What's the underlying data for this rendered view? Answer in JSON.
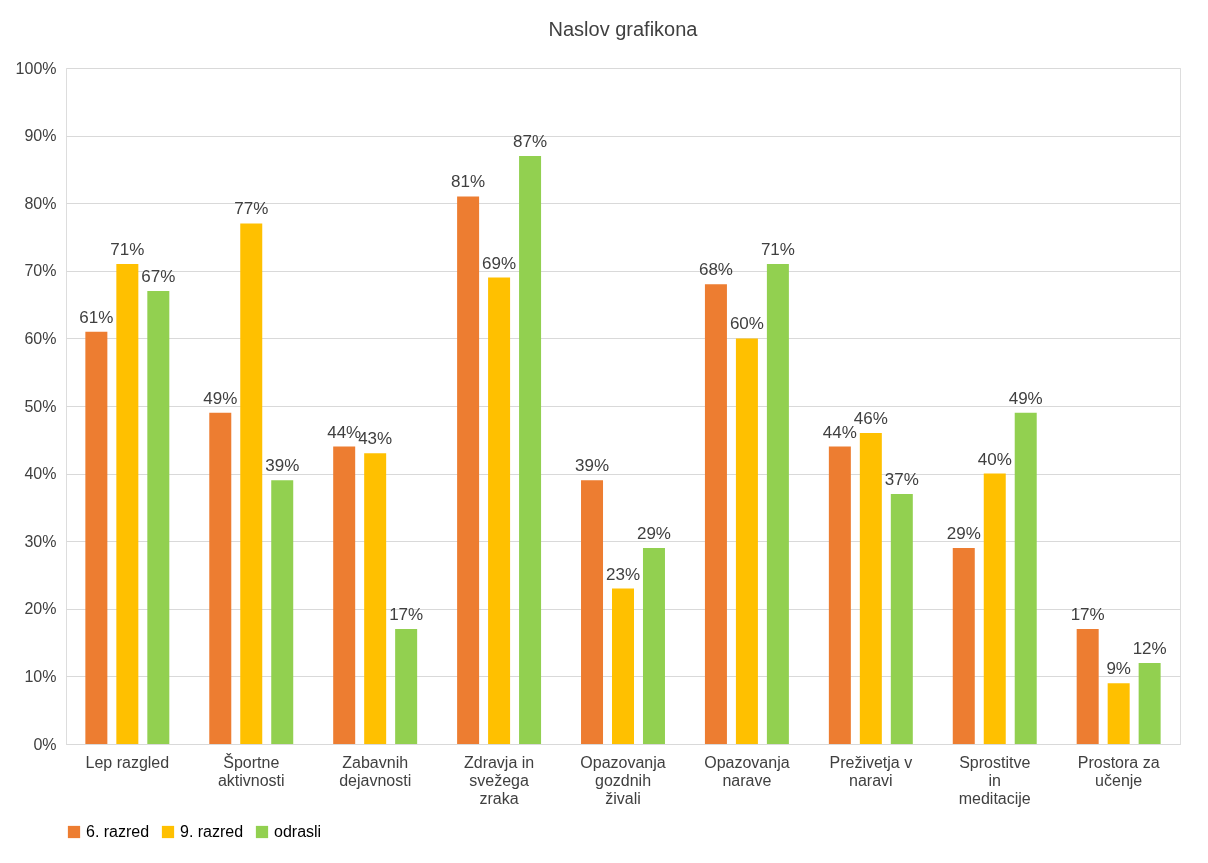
{
  "chart_data": {
    "type": "bar",
    "title": "Naslov grafikona",
    "categories": [
      "Lep razgled",
      "Športne aktivnosti",
      "Zabavnih dejavnosti",
      "Zdravja in svežega zraka",
      "Opazovanja gozdnih živali",
      "Opazovanja narave",
      "Preživetja v naravi",
      "Sprostitve in meditacije",
      "Prostora za učenje"
    ],
    "series": [
      {
        "name": "6. razred",
        "color": "#ed7d31",
        "values": [
          61,
          49,
          44,
          81,
          39,
          68,
          44,
          29,
          17
        ],
        "value_labels": [
          "61%",
          "49%",
          "44%",
          "81%",
          "39%",
          "68%",
          "44%",
          "29%",
          "17%"
        ]
      },
      {
        "name": "9. razred",
        "color": "#ffc000",
        "values": [
          71,
          77,
          43,
          69,
          23,
          60,
          46,
          40,
          9
        ],
        "value_labels": [
          "71%",
          "77%",
          "43%",
          "69%",
          "23%",
          "60%",
          "46%",
          "40%",
          "9%"
        ]
      },
      {
        "name": "odrasli",
        "color": "#92d050",
        "values": [
          67,
          39,
          17,
          87,
          29,
          71,
          37,
          49,
          12
        ],
        "value_labels": [
          "67%",
          "39%",
          "17%",
          "87%",
          "29%",
          "71%",
          "37%",
          "49%",
          "12%"
        ]
      }
    ],
    "ylim": [
      0,
      100
    ],
    "yticks": [
      {
        "value": 0,
        "label": "0%"
      },
      {
        "value": 10,
        "label": "10%"
      },
      {
        "value": 20,
        "label": "20%"
      },
      {
        "value": 30,
        "label": "30%"
      },
      {
        "value": 40,
        "label": "40%"
      },
      {
        "value": 50,
        "label": "50%"
      },
      {
        "value": 60,
        "label": "60%"
      },
      {
        "value": 70,
        "label": "70%"
      },
      {
        "value": 80,
        "label": "80%"
      },
      {
        "value": 90,
        "label": "90%"
      },
      {
        "value": 100,
        "label": "100%"
      }
    ],
    "grid": "y",
    "legend": "bottom"
  }
}
